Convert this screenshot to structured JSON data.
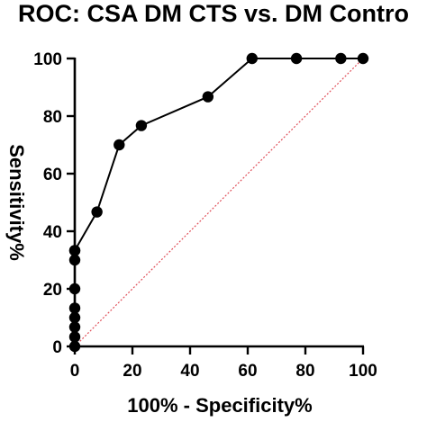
{
  "chart_data": {
    "type": "line",
    "title": "ROC: CSA DM CTS vs. DM Contro",
    "xlabel": "100% - Specificity%",
    "ylabel": "Sensitivity%",
    "xlim": [
      0,
      100
    ],
    "ylim": [
      0,
      100
    ],
    "x_ticks": [
      "0",
      "20",
      "40",
      "60",
      "80",
      "100"
    ],
    "y_ticks": [
      "0",
      "20",
      "40",
      "60",
      "80",
      "100"
    ],
    "grid": false,
    "legend": "none",
    "series": [
      {
        "x": [
          0,
          0,
          0,
          0,
          0,
          0,
          0,
          0,
          0,
          7.7,
          15.4,
          23.1,
          46.2,
          61.5,
          76.9,
          92.3,
          100
        ],
        "y": [
          0,
          3.3,
          6.7,
          10,
          13.3,
          20,
          30,
          33.3,
          33.3,
          46.7,
          70,
          76.7,
          86.7,
          100,
          100,
          100,
          100
        ],
        "color": "#000000"
      },
      {
        "x": [
          0,
          100
        ],
        "y": [
          0,
          100
        ],
        "color": "#e0505a",
        "style": "dotted"
      }
    ]
  }
}
